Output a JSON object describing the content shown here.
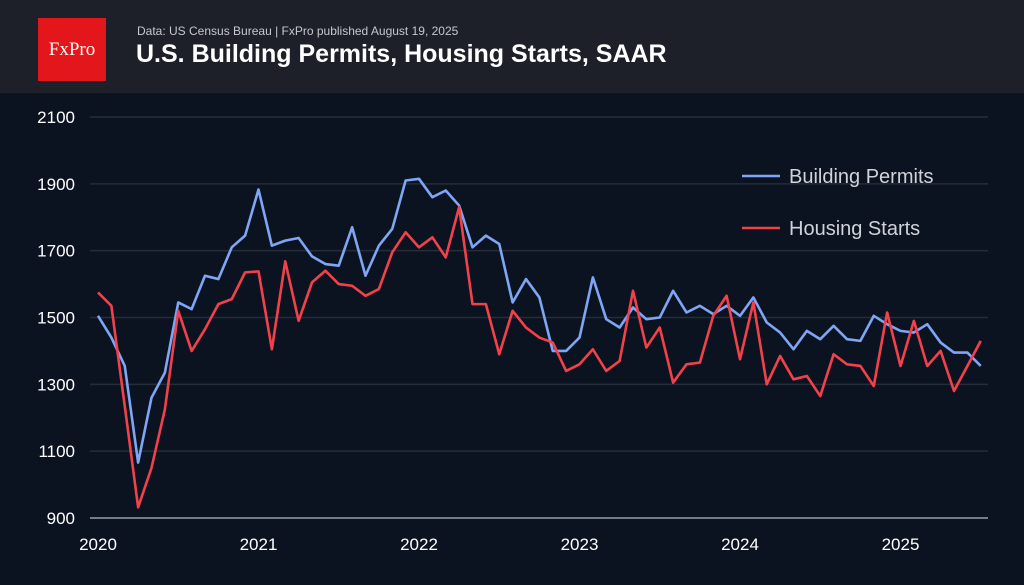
{
  "header": {
    "logo": "FxPro",
    "source": "Data: US Census Bureau | FxPro published August 19, 2025",
    "title": "U.S. Building Permits, Housing Starts, SAAR"
  },
  "chart_data": {
    "type": "line",
    "title": "U.S. Building Permits, Housing Starts, SAAR",
    "x_start": "2020-01",
    "frequency": "monthly",
    "xticks": [
      "2020",
      "2021",
      "2022",
      "2023",
      "2024",
      "2025"
    ],
    "yticks": [
      900,
      1100,
      1300,
      1500,
      1700,
      1900,
      2100
    ],
    "ylim": [
      900,
      2100
    ],
    "grid": true,
    "legend": "top-right",
    "series": [
      {
        "name": "Building Permits",
        "color": "#7ea6f5",
        "values": [
          1505,
          1440,
          1355,
          1066,
          1260,
          1335,
          1545,
          1525,
          1625,
          1615,
          1710,
          1745,
          1883,
          1715,
          1730,
          1738,
          1683,
          1660,
          1655,
          1770,
          1625,
          1715,
          1765,
          1910,
          1915,
          1860,
          1880,
          1835,
          1710,
          1745,
          1720,
          1545,
          1615,
          1560,
          1400,
          1400,
          1440,
          1620,
          1495,
          1470,
          1530,
          1495,
          1500,
          1580,
          1515,
          1535,
          1510,
          1535,
          1505,
          1560,
          1485,
          1455,
          1405,
          1460,
          1435,
          1475,
          1435,
          1430,
          1505,
          1480,
          1460,
          1455,
          1480,
          1425,
          1395,
          1395,
          1355
        ]
      },
      {
        "name": "Housing Starts",
        "color": "#f2414b",
        "values": [
          1575,
          1535,
          1235,
          932,
          1050,
          1225,
          1520,
          1400,
          1465,
          1540,
          1555,
          1635,
          1638,
          1405,
          1668,
          1490,
          1605,
          1640,
          1600,
          1595,
          1565,
          1585,
          1695,
          1755,
          1710,
          1740,
          1680,
          1830,
          1540,
          1540,
          1390,
          1520,
          1470,
          1440,
          1425,
          1340,
          1360,
          1405,
          1340,
          1370,
          1580,
          1410,
          1470,
          1305,
          1360,
          1365,
          1505,
          1565,
          1375,
          1545,
          1300,
          1385,
          1315,
          1325,
          1265,
          1390,
          1360,
          1355,
          1295,
          1515,
          1355,
          1490,
          1355,
          1400,
          1280,
          1355,
          1430
        ]
      }
    ]
  }
}
